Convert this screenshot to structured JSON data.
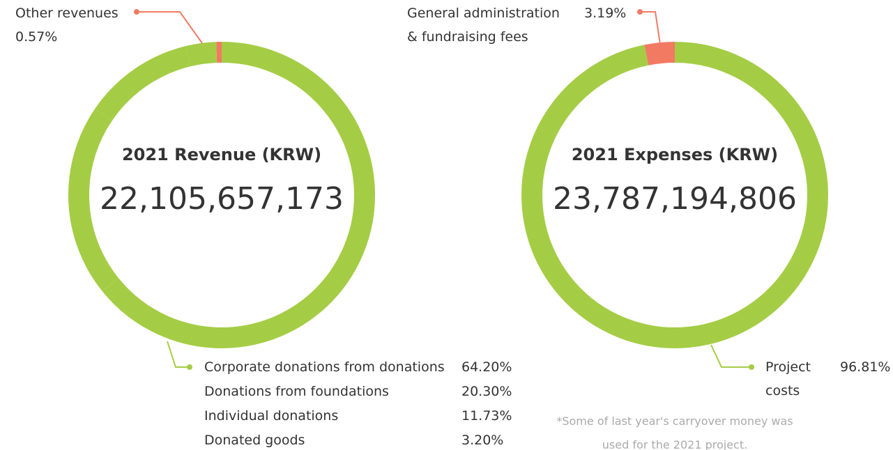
{
  "chart_data": [
    {
      "type": "donut",
      "title": "2021 Revenue (KRW)",
      "total": "22,105,657,173",
      "categories": [
        "Corporate donations from donations",
        "Donations from foundations",
        "Individual donations",
        "Donated goods",
        "Other revenues"
      ],
      "values": [
        64.2,
        20.3,
        11.73,
        3.2,
        0.57
      ],
      "value_labels": [
        "64.20%",
        "20.30%",
        "11.73%",
        "3.20%",
        "0.57%"
      ],
      "colors": [
        "#a4cd45",
        "#a4cd45",
        "#a4cd45",
        "#a4cd45",
        "#f27a63"
      ]
    },
    {
      "type": "donut",
      "title": "2021 Expenses (KRW)",
      "total": "23,787,194,806",
      "categories": [
        "Project costs",
        "General administration & fundraising fees"
      ],
      "values": [
        96.81,
        3.19
      ],
      "value_labels": [
        "96.81%",
        "3.19%"
      ],
      "colors": [
        "#a4cd45",
        "#f27a63"
      ],
      "note": "*Some of last year's carryover money was used for the 2021 project."
    }
  ]
}
